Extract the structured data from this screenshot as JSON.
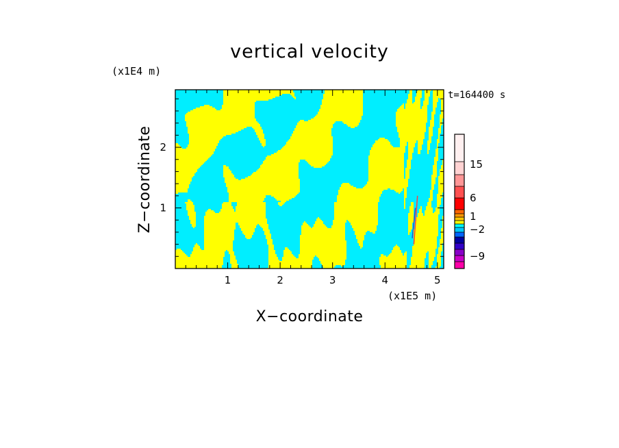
{
  "chart_data": {
    "type": "heatmap",
    "title": "vertical velocity",
    "xlabel": "X−coordinate",
    "ylabel": "Z−coordinate",
    "x_scale_label": "(x1E5 m)",
    "y_scale_label": "(x1E4 m)",
    "time_label": "t=164400 s",
    "xlim": [
      0,
      5.12
    ],
    "ylim": [
      0,
      2.95
    ],
    "x_ticks": [
      "1",
      "2",
      "3",
      "4",
      "5"
    ],
    "y_ticks": [
      "1",
      "2"
    ],
    "colorbar": {
      "tick_labels": [
        "15",
        "6",
        "1",
        "−2",
        "−9"
      ],
      "colors": [
        "#ff00a8",
        "#c800c8",
        "#8800c8",
        "#3200c8",
        "#0000a0",
        "#0064ff",
        "#00c8ff",
        "#00ffff",
        "#ffff00",
        "#ffc800",
        "#ff9600",
        "#ff6400",
        "#ff0000",
        "#ff5050",
        "#ff9696",
        "#ffd2d2",
        "#fff0f0"
      ]
    },
    "field_colors": {
      "positive": "#ffff00",
      "negative": "#00eeff",
      "strong_positive": "#ff4040",
      "strong_negative": "#3050c8"
    },
    "grid": false,
    "legend": "colorbar-right"
  }
}
